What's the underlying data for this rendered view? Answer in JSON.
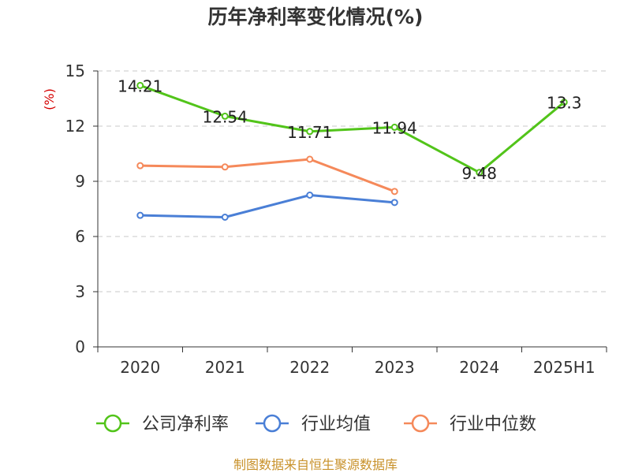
{
  "chart_data": {
    "type": "line",
    "title": "历年净利率变化情况(%)",
    "ylabel": "(%)",
    "xlabel": "",
    "categories": [
      "2020",
      "2021",
      "2022",
      "2023",
      "2024",
      "2025H1"
    ],
    "ylim": [
      0,
      15
    ],
    "yticks": [
      0,
      3,
      6,
      9,
      12,
      15
    ],
    "grid": true,
    "legend_position": "bottom",
    "series": [
      {
        "name": "公司净利率",
        "color": "#52c41a",
        "values": [
          14.21,
          12.54,
          11.71,
          11.94,
          9.48,
          13.3
        ],
        "labels": [
          "14.21",
          "12.54",
          "11.71",
          "11.94",
          "9.48",
          "13.3"
        ]
      },
      {
        "name": "行业均值",
        "color": "#4a7fd6",
        "values": [
          7.15,
          7.05,
          8.25,
          7.85,
          null,
          null
        ]
      },
      {
        "name": "行业中位数",
        "color": "#f5895a",
        "values": [
          9.85,
          9.78,
          10.2,
          8.45,
          null,
          null
        ]
      }
    ]
  },
  "ylabel_color": "#d40000",
  "source": {
    "text": "制图数据来自恒生聚源数据库",
    "color": "#c8912a"
  }
}
